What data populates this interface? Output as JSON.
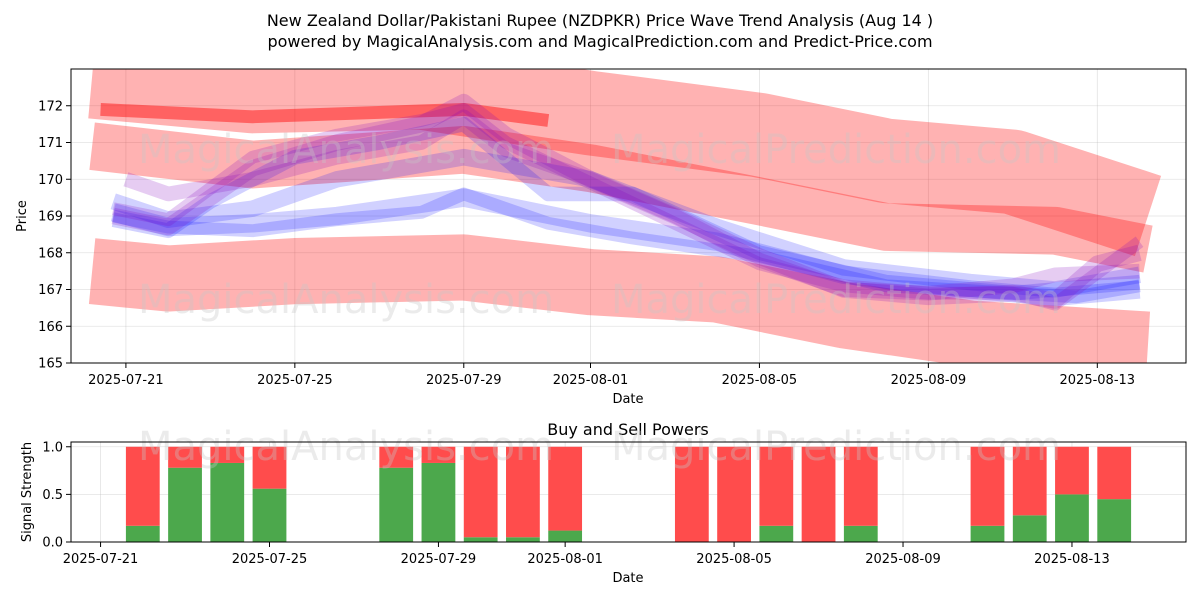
{
  "chart_data": [
    {
      "type": "line",
      "title": "New Zealand Dollar/Pakistani Rupee (NZDPKR) Price Wave Trend Analysis (Aug 14 )",
      "subtitle": "powered by MagicalAnalysis.com and MagicalPrediction.com and Predict-Price.com",
      "xlabel": "Date",
      "ylabel": "Price",
      "ylim": [
        165,
        173
      ],
      "xlim_days": [
        -1.3,
        25.1
      ],
      "x_origin_date": "2025-07-21",
      "yticks": [
        165,
        166,
        167,
        168,
        169,
        170,
        171,
        172
      ],
      "xticks": [
        {
          "day": 0,
          "label": "2025-07-21"
        },
        {
          "day": 4,
          "label": "2025-07-25"
        },
        {
          "day": 8,
          "label": "2025-07-29"
        },
        {
          "day": 11,
          "label": "2025-08-01"
        },
        {
          "day": 15,
          "label": "2025-08-05"
        },
        {
          "day": 19,
          "label": "2025-08-09"
        },
        {
          "day": 23,
          "label": "2025-08-13"
        }
      ],
      "watermarks": [
        "MagicalAnalysis.com",
        "MagicalPrediction.com"
      ],
      "colors": {
        "red_band": "#ff0000",
        "blue_band": "#0000ff",
        "purple_band": "#8000c0"
      },
      "series": [
        {
          "name": "upper-red-band",
          "color": "#ff0000",
          "width": 2.3,
          "opacity": 0.3,
          "x": [
            -0.8,
            3,
            7,
            11,
            15,
            18,
            21,
            24.2
          ],
          "y": [
            172.8,
            172.4,
            172.5,
            171.8,
            171.2,
            170.5,
            170.2,
            169.0
          ]
        },
        {
          "name": "middle-red-band",
          "color": "#ff0000",
          "width": 1.3,
          "opacity": 0.3,
          "x": [
            -0.8,
            3,
            8,
            11,
            15,
            18,
            22,
            24.2
          ],
          "y": [
            170.9,
            170.4,
            170.8,
            170.3,
            169.4,
            168.7,
            168.6,
            168.1
          ]
        },
        {
          "name": "lower-red-band",
          "color": "#ff0000",
          "width": 1.8,
          "opacity": 0.3,
          "x": [
            -0.8,
            1,
            4,
            8,
            11,
            14,
            17,
            20,
            24.2
          ],
          "y": [
            167.5,
            167.3,
            167.5,
            167.6,
            167.2,
            167.0,
            166.3,
            165.8,
            165.5
          ]
        },
        {
          "name": "top-red-spike",
          "color": "#ff0000",
          "width": 0.35,
          "opacity": 0.45,
          "x": [
            -0.6,
            3,
            8,
            10
          ],
          "y": [
            171.9,
            171.7,
            171.9,
            171.6
          ]
        },
        {
          "name": "blue-wave-1",
          "color": "#0000ff",
          "width": 0.5,
          "opacity": 0.18,
          "x": [
            -0.3,
            1,
            3,
            5,
            8,
            11,
            14,
            17,
            20,
            22,
            24
          ],
          "y": [
            169.1,
            168.7,
            168.8,
            169.0,
            169.5,
            168.8,
            168.3,
            167.4,
            167.0,
            166.8,
            167.0
          ]
        },
        {
          "name": "blue-wave-2",
          "color": "#0000ff",
          "width": 0.45,
          "opacity": 0.18,
          "x": [
            -0.3,
            1,
            3,
            5,
            8,
            11,
            14,
            17,
            20,
            22,
            24
          ],
          "y": [
            169.4,
            168.9,
            169.2,
            170.0,
            170.6,
            170.0,
            168.7,
            167.6,
            167.2,
            167.0,
            167.4
          ]
        },
        {
          "name": "blue-wave-3",
          "color": "#0000ff",
          "width": 0.4,
          "opacity": 0.18,
          "x": [
            -0.3,
            1,
            2,
            4,
            6,
            8,
            10,
            12,
            15,
            18,
            21,
            24
          ],
          "y": [
            168.9,
            168.6,
            169.4,
            170.6,
            171.0,
            171.5,
            169.6,
            169.6,
            168.0,
            167.2,
            166.9,
            167.2
          ]
        },
        {
          "name": "blue-wave-4",
          "color": "#0000ff",
          "width": 0.35,
          "opacity": 0.18,
          "x": [
            -0.3,
            1,
            3,
            5,
            7,
            8,
            9,
            10,
            12,
            15,
            18,
            21,
            22.5,
            24
          ],
          "y": [
            169.0,
            168.7,
            168.6,
            168.9,
            169.1,
            169.6,
            169.2,
            168.8,
            168.4,
            167.9,
            167.1,
            166.9,
            166.8,
            167.1
          ]
        },
        {
          "name": "purple-wave-1",
          "color": "#8000c0",
          "width": 0.45,
          "opacity": 0.2,
          "x": [
            -0.3,
            1,
            3,
            5,
            7,
            8,
            9,
            11,
            13,
            15,
            17,
            19,
            21,
            22,
            23,
            24
          ],
          "y": [
            169.0,
            168.7,
            170.3,
            171.0,
            171.5,
            172.1,
            171.2,
            170.0,
            169.0,
            167.9,
            167.0,
            166.8,
            166.9,
            166.7,
            167.7,
            168.0
          ]
        },
        {
          "name": "purple-wave-2",
          "color": "#8000c0",
          "width": 0.35,
          "opacity": 0.2,
          "x": [
            -0.3,
            1,
            3,
            5,
            7,
            8,
            9,
            11,
            13,
            15,
            17,
            19,
            21,
            22,
            24
          ],
          "y": [
            169.2,
            168.9,
            170.6,
            171.2,
            171.6,
            171.9,
            171.0,
            169.9,
            168.8,
            167.7,
            167.1,
            166.9,
            166.9,
            166.6,
            168.3
          ]
        },
        {
          "name": "purple-wave-3",
          "color": "#8000c0",
          "width": 0.4,
          "opacity": 0.2,
          "x": [
            0,
            1,
            3,
            5,
            7,
            8,
            9,
            11,
            13,
            15,
            17,
            19,
            21,
            22,
            24
          ],
          "y": [
            170.0,
            169.6,
            170.0,
            170.6,
            171.0,
            171.7,
            170.8,
            170.0,
            169.0,
            167.8,
            167.0,
            166.9,
            167.1,
            167.4,
            167.5
          ]
        }
      ]
    },
    {
      "type": "bar",
      "title": "Buy and Sell Powers",
      "xlabel": "Date",
      "ylabel": "Signal Strength",
      "ylim": [
        0,
        1.05
      ],
      "xlim_days": [
        -1.3,
        25.1
      ],
      "yticks": [
        {
          "v": 0,
          "label": "0.0"
        },
        {
          "v": 0.5,
          "label": "0.5"
        },
        {
          "v": 1.0,
          "label": "1.0"
        }
      ],
      "xticks": [
        {
          "day": -0.6,
          "label": "2025-07-21"
        },
        {
          "day": 3.4,
          "label": "2025-07-25"
        },
        {
          "day": 7.4,
          "label": "2025-07-29"
        },
        {
          "day": 10.4,
          "label": "2025-08-01"
        },
        {
          "day": 14.4,
          "label": "2025-08-05"
        },
        {
          "day": 18.4,
          "label": "2025-08-09"
        },
        {
          "day": 22.4,
          "label": "2025-08-13"
        }
      ],
      "colors": {
        "buy": "#4ca84c",
        "sell": "#ff4c4c"
      },
      "series": [
        {
          "name": "buy",
          "color": "#4ca84c"
        },
        {
          "name": "sell",
          "color": "#ff4c4c"
        }
      ],
      "bars": [
        {
          "day": 0.4,
          "buy": 0.17,
          "sell": 0.83
        },
        {
          "day": 1.4,
          "buy": 0.78,
          "sell": 0.22
        },
        {
          "day": 2.4,
          "buy": 0.83,
          "sell": 0.17
        },
        {
          "day": 3.4,
          "buy": 0.56,
          "sell": 0.44
        },
        {
          "day": 6.4,
          "buy": 0.78,
          "sell": 0.22
        },
        {
          "day": 7.4,
          "buy": 0.83,
          "sell": 0.17
        },
        {
          "day": 8.4,
          "buy": 0.05,
          "sell": 0.95
        },
        {
          "day": 9.4,
          "buy": 0.05,
          "sell": 0.95
        },
        {
          "day": 10.4,
          "buy": 0.12,
          "sell": 0.88
        },
        {
          "day": 13.4,
          "buy": 0.0,
          "sell": 1.0
        },
        {
          "day": 14.4,
          "buy": 0.0,
          "sell": 1.0
        },
        {
          "day": 15.4,
          "buy": 0.17,
          "sell": 0.83
        },
        {
          "day": 16.4,
          "buy": 0.0,
          "sell": 1.0
        },
        {
          "day": 17.4,
          "buy": 0.17,
          "sell": 0.83
        },
        {
          "day": 20.4,
          "buy": 0.17,
          "sell": 0.83
        },
        {
          "day": 21.4,
          "buy": 0.28,
          "sell": 0.72
        },
        {
          "day": 22.4,
          "buy": 0.5,
          "sell": 0.5
        },
        {
          "day": 23.4,
          "buy": 0.45,
          "sell": 0.55
        }
      ]
    }
  ]
}
